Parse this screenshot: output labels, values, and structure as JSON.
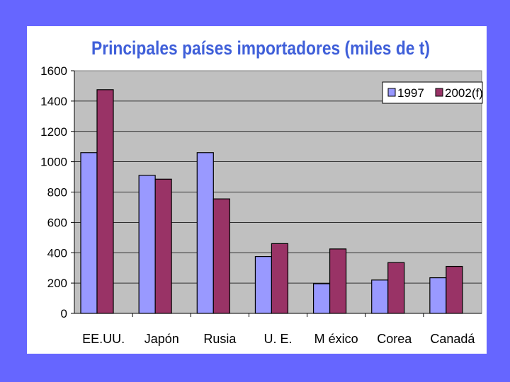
{
  "chart_data": {
    "type": "bar",
    "title": "Principales países importadores (miles de t)",
    "categories": [
      "EE.UU.",
      "Japón",
      "Rusia",
      "U. E.",
      "M éxico",
      "Corea",
      "Canadá"
    ],
    "series": [
      {
        "name": "1997",
        "values": [
          1060,
          910,
          1060,
          375,
          195,
          220,
          235
        ],
        "color": "#9999ff"
      },
      {
        "name": "2002(f)",
        "values": [
          1475,
          885,
          755,
          460,
          425,
          335,
          310
        ],
        "color": "#993366"
      }
    ],
    "ylim": [
      0,
      1600
    ],
    "yticks": [
      "0",
      "200",
      "400",
      "600",
      "800",
      "1000",
      "1200",
      "1400",
      "1600"
    ],
    "grid": true,
    "legend_position": "top-right",
    "plot_background": "#c0c0c0",
    "title_color": "#3f5fd9"
  }
}
